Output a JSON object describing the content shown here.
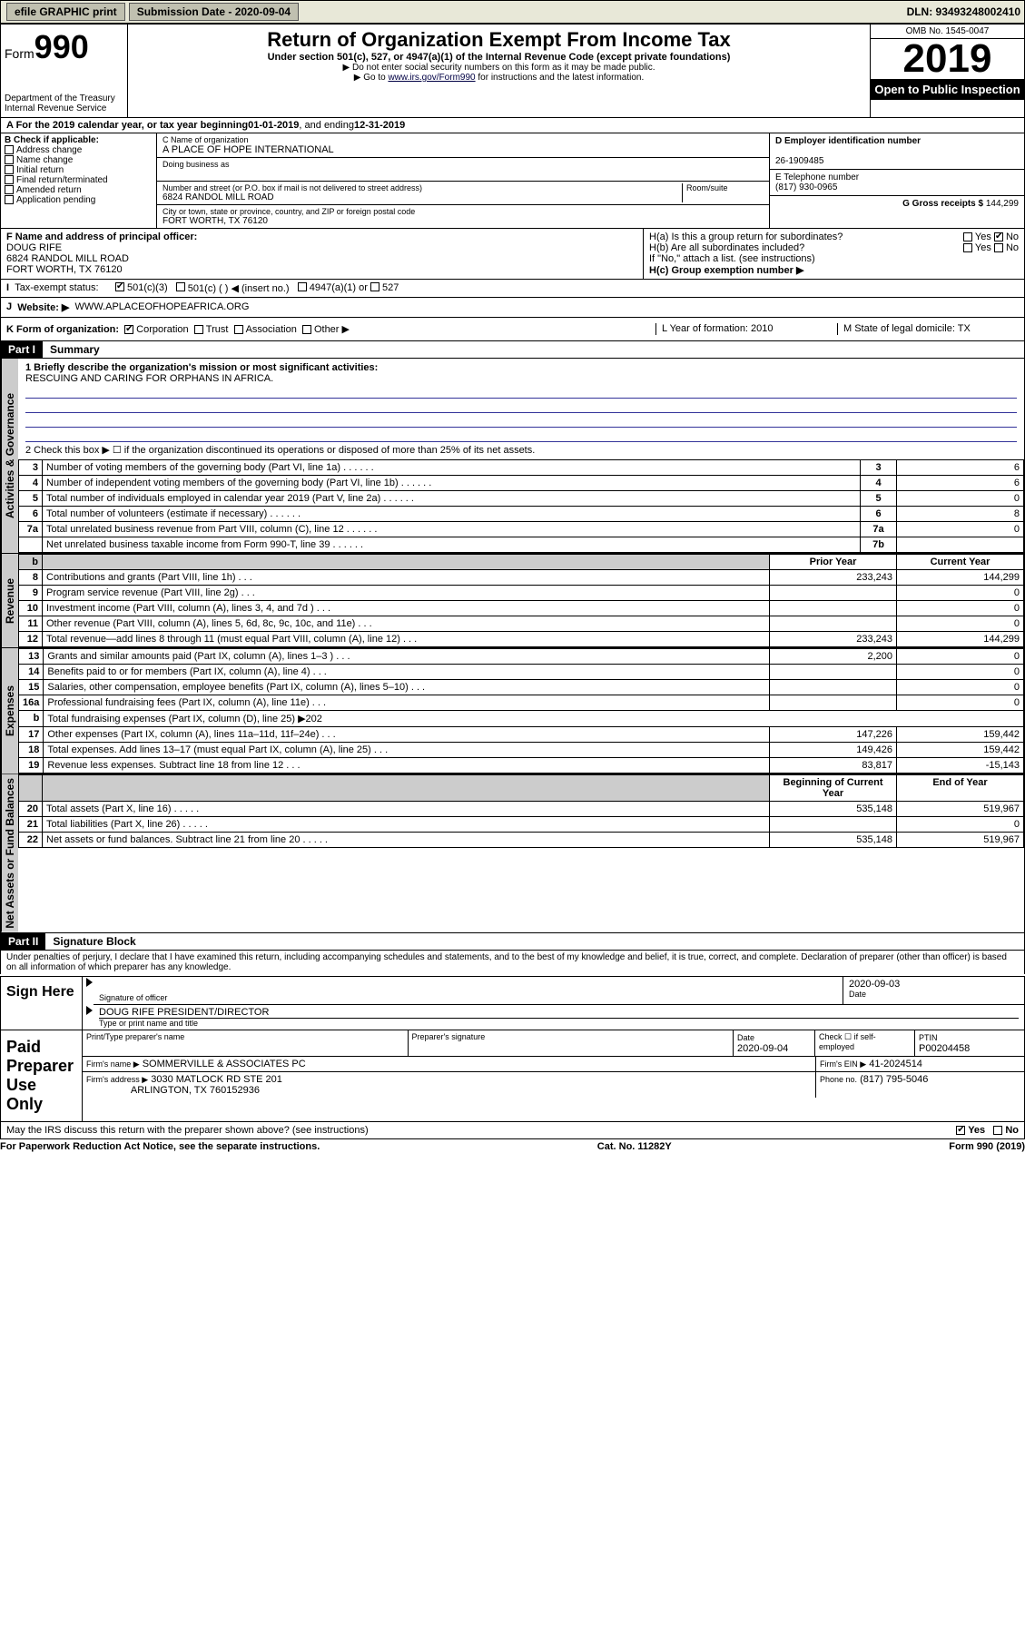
{
  "top": {
    "efile": "efile GRAPHIC print",
    "submission_label": "Submission Date - 2020-09-04",
    "dln": "DLN: 93493248002410"
  },
  "header": {
    "form_label": "Form",
    "form_number": "990",
    "dept": "Department of the Treasury",
    "irs": "Internal Revenue Service",
    "title": "Return of Organization Exempt From Income Tax",
    "subtitle": "Under section 501(c), 527, or 4947(a)(1) of the Internal Revenue Code (except private foundations)",
    "instr1": "▶ Do not enter social security numbers on this form as it may be made public.",
    "instr2_prefix": "▶ Go to ",
    "instr2_link": "www.irs.gov/Form990",
    "instr2_suffix": " for instructions and the latest information.",
    "omb": "OMB No. 1545-0047",
    "year": "2019",
    "open": "Open to Public Inspection"
  },
  "period": {
    "text_prefix": "A For the 2019 calendar year, or tax year beginning ",
    "begin": "01-01-2019",
    "mid": " , and ending ",
    "end": "12-31-2019"
  },
  "boxB": {
    "label": "B Check if applicable:",
    "items": [
      "Address change",
      "Name change",
      "Initial return",
      "Final return/terminated",
      "Amended return",
      "Application pending"
    ]
  },
  "boxC": {
    "name_label": "C Name of organization",
    "name": "A PLACE OF HOPE INTERNATIONAL",
    "dba_label": "Doing business as",
    "street_label": "Number and street (or P.O. box if mail is not delivered to street address)",
    "room_label": "Room/suite",
    "street": "6824 RANDOL MILL ROAD",
    "city_label": "City or town, state or province, country, and ZIP or foreign postal code",
    "city": "FORT WORTH, TX  76120"
  },
  "boxD": {
    "label": "D Employer identification number",
    "ein": "26-1909485"
  },
  "boxE": {
    "label": "E Telephone number",
    "phone": "(817) 930-0965"
  },
  "boxG": {
    "label": "G Gross receipts $ ",
    "amount": "144,299"
  },
  "boxF": {
    "label": "F  Name and address of principal officer:",
    "name": "DOUG RIFE",
    "addr1": "6824 RANDOL MILL ROAD",
    "addr2": "FORT WORTH, TX  76120"
  },
  "boxH": {
    "a": "H(a)  Is this a group return for subordinates?",
    "b": "H(b)  Are all subordinates included?",
    "b_note": "If \"No,\" attach a list. (see instructions)",
    "c": "H(c)  Group exemption number ▶",
    "yes": "Yes",
    "no": "No"
  },
  "taxStatus": {
    "label": "Tax-exempt status:",
    "opt1": "501(c)(3)",
    "opt2": "501(c) (   ) ◀ (insert no.)",
    "opt3": "4947(a)(1) or",
    "opt4": "527"
  },
  "website": {
    "label": "Website: ▶",
    "url": "WWW.APLACEOFHOPEAFRICA.ORG"
  },
  "lineK": {
    "label": "K Form of organization:",
    "opts": [
      "Corporation",
      "Trust",
      "Association",
      "Other ▶"
    ],
    "L": "L Year of formation: 2010",
    "M": "M State of legal domicile: TX"
  },
  "part1": {
    "hdr": "Part I",
    "title": "Summary",
    "q1_label": "1  Briefly describe the organization's mission or most significant activities:",
    "q1_text": "RESCUING AND CARING FOR ORPHANS IN AFRICA.",
    "q2": "2  Check this box ▶ ☐  if the organization discontinued its operations or disposed of more than 25% of its net assets."
  },
  "sections": {
    "actgov": "Activities & Governance",
    "rev": "Revenue",
    "exp": "Expenses",
    "net": "Net Assets or Fund Balances"
  },
  "govRows": [
    {
      "n": "3",
      "t": "Number of voting members of the governing body (Part VI, line 1a)",
      "c": "3",
      "v": "6"
    },
    {
      "n": "4",
      "t": "Number of independent voting members of the governing body (Part VI, line 1b)",
      "c": "4",
      "v": "6"
    },
    {
      "n": "5",
      "t": "Total number of individuals employed in calendar year 2019 (Part V, line 2a)",
      "c": "5",
      "v": "0"
    },
    {
      "n": "6",
      "t": "Total number of volunteers (estimate if necessary)",
      "c": "6",
      "v": "8"
    },
    {
      "n": "7a",
      "t": "Total unrelated business revenue from Part VIII, column (C), line 12",
      "c": "7a",
      "v": "0"
    },
    {
      "n": "",
      "t": "Net unrelated business taxable income from Form 990-T, line 39",
      "c": "7b",
      "v": ""
    }
  ],
  "revHdr": {
    "b": "b",
    "prior": "Prior Year",
    "curr": "Current Year"
  },
  "revRows": [
    {
      "n": "8",
      "t": "Contributions and grants (Part VIII, line 1h)",
      "p": "233,243",
      "c": "144,299"
    },
    {
      "n": "9",
      "t": "Program service revenue (Part VIII, line 2g)",
      "p": "",
      "c": "0"
    },
    {
      "n": "10",
      "t": "Investment income (Part VIII, column (A), lines 3, 4, and 7d )",
      "p": "",
      "c": "0"
    },
    {
      "n": "11",
      "t": "Other revenue (Part VIII, column (A), lines 5, 6d, 8c, 9c, 10c, and 11e)",
      "p": "",
      "c": "0"
    },
    {
      "n": "12",
      "t": "Total revenue—add lines 8 through 11 (must equal Part VIII, column (A), line 12)",
      "p": "233,243",
      "c": "144,299"
    }
  ],
  "expRows": [
    {
      "n": "13",
      "t": "Grants and similar amounts paid (Part IX, column (A), lines 1–3 )",
      "p": "2,200",
      "c": "0"
    },
    {
      "n": "14",
      "t": "Benefits paid to or for members (Part IX, column (A), line 4)",
      "p": "",
      "c": "0"
    },
    {
      "n": "15",
      "t": "Salaries, other compensation, employee benefits (Part IX, column (A), lines 5–10)",
      "p": "",
      "c": "0"
    },
    {
      "n": "16a",
      "t": "Professional fundraising fees (Part IX, column (A), line 11e)",
      "p": "",
      "c": "0"
    },
    {
      "n": "b",
      "t": "Total fundraising expenses (Part IX, column (D), line 25) ▶202",
      "p": "—",
      "c": "—"
    },
    {
      "n": "17",
      "t": "Other expenses (Part IX, column (A), lines 11a–11d, 11f–24e)",
      "p": "147,226",
      "c": "159,442"
    },
    {
      "n": "18",
      "t": "Total expenses. Add lines 13–17 (must equal Part IX, column (A), line 25)",
      "p": "149,426",
      "c": "159,442"
    },
    {
      "n": "19",
      "t": "Revenue less expenses. Subtract line 18 from line 12",
      "p": "83,817",
      "c": "-15,143"
    }
  ],
  "netHdr": {
    "beg": "Beginning of Current Year",
    "end": "End of Year"
  },
  "netRows": [
    {
      "n": "20",
      "t": "Total assets (Part X, line 16)",
      "p": "535,148",
      "c": "519,967"
    },
    {
      "n": "21",
      "t": "Total liabilities (Part X, line 26)",
      "p": "",
      "c": "0"
    },
    {
      "n": "22",
      "t": "Net assets or fund balances. Subtract line 21 from line 20",
      "p": "535,148",
      "c": "519,967"
    }
  ],
  "part2": {
    "hdr": "Part II",
    "title": "Signature Block",
    "decl": "Under penalties of perjury, I declare that I have examined this return, including accompanying schedules and statements, and to the best of my knowledge and belief, it is true, correct, and complete. Declaration of preparer (other than officer) is based on all information of which preparer has any knowledge."
  },
  "sign": {
    "here": "Sign Here",
    "sig_label": "Signature of officer",
    "date": "2020-09-03",
    "date_label": "Date",
    "name": "DOUG RIFE  PRESIDENT/DIRECTOR",
    "name_label": "Type or print name and title"
  },
  "paid": {
    "here": "Paid Preparer Use Only",
    "c1": "Print/Type preparer's name",
    "c2": "Preparer's signature",
    "c3": "Date",
    "c3v": "2020-09-04",
    "c4": "Check ☐ if self-employed",
    "c5": "PTIN",
    "c5v": "P00204458",
    "firm_label": "Firm's name    ▶",
    "firm": "SOMMERVILLE & ASSOCIATES PC",
    "ein_label": "Firm's EIN ▶",
    "ein": "41-2024514",
    "addr_label": "Firm's address ▶",
    "addr1": "3030 MATLOCK RD STE 201",
    "addr2": "ARLINGTON, TX  760152936",
    "phone_label": "Phone no.",
    "phone": "(817) 795-5046"
  },
  "discuss": {
    "q": "May the IRS discuss this return with the preparer shown above? (see instructions)",
    "yes": "Yes",
    "no": "No"
  },
  "footer": {
    "left": "For Paperwork Reduction Act Notice, see the separate instructions.",
    "mid": "Cat. No. 11282Y",
    "right": "Form 990 (2019)"
  },
  "colors": {
    "topbar_bg": "#e8e8d8",
    "rule_blue": "#334a9f"
  }
}
